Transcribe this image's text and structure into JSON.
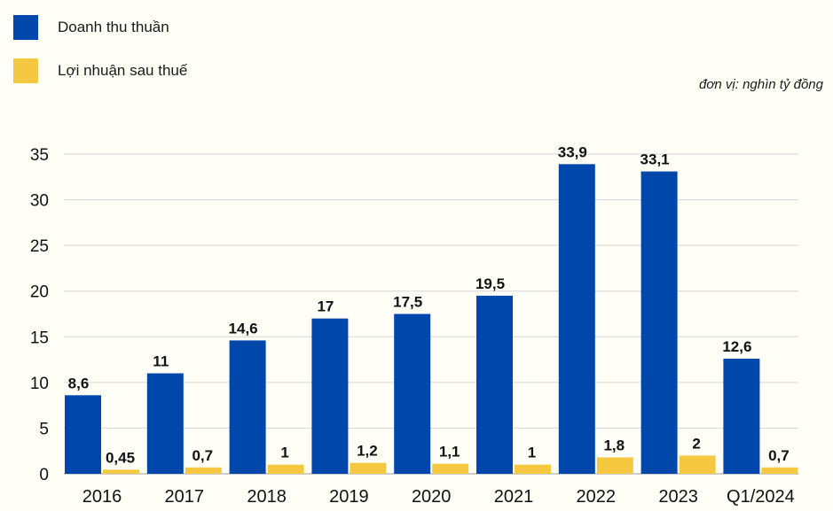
{
  "chart_data": {
    "type": "bar",
    "categories": [
      "2016",
      "2017",
      "2018",
      "2019",
      "2020",
      "2021",
      "2022",
      "2023",
      "Q1/2024"
    ],
    "series": [
      {
        "name": "Doanh thu thuần",
        "color": "#0047AB",
        "values": [
          8.6,
          11,
          14.6,
          17,
          17.5,
          19.5,
          33.9,
          33.1,
          12.6
        ],
        "labels": [
          "8,6",
          "11",
          "14,6",
          "17",
          "17,5",
          "19,5",
          "33,9",
          "33,1",
          "12,6"
        ]
      },
      {
        "name": "Lợi nhuận sau thuế",
        "color": "#F5C842",
        "values": [
          0.45,
          0.7,
          1,
          1.2,
          1.1,
          1,
          1.8,
          2,
          0.7
        ],
        "labels": [
          "0,45",
          "0,7",
          "1",
          "1,2",
          "1,1",
          "1",
          "1,8",
          "2",
          "0,7"
        ]
      }
    ],
    "yticks": [
      "0",
      "5",
      "10",
      "15",
      "20",
      "25",
      "30",
      "35"
    ],
    "ylim": [
      0,
      35
    ],
    "unit_note": "đơn vị:  nghìn tỷ đồng",
    "grid": true,
    "legend": "top-left"
  }
}
